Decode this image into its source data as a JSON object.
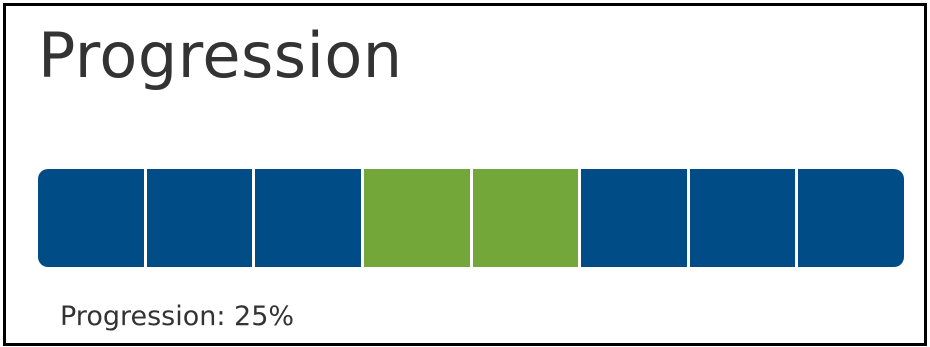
{
  "widget": {
    "title": "Progression",
    "caption": "Progression: 25%"
  },
  "progress": {
    "segment_count": 8,
    "highlighted_segments": [
      4,
      5
    ],
    "fill_fraction": 0.25
  },
  "colors": {
    "segment": "#004c86",
    "highlight": "#73a73a",
    "text": "#333333"
  }
}
